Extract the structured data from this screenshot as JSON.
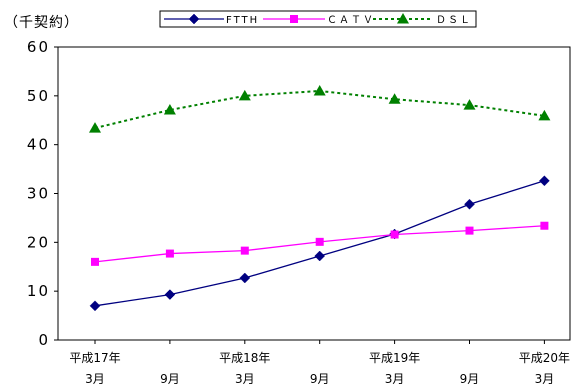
{
  "chart_data": {
    "type": "line",
    "title": "",
    "ylabel": "（千契約）",
    "xlabel": "",
    "ylim": [
      0,
      60
    ],
    "yticks": [
      0,
      10,
      20,
      30,
      40,
      50,
      60
    ],
    "grid": false,
    "legend_placement": "top-center",
    "categories": [
      [
        "平成17年",
        "3月"
      ],
      [
        "",
        "9月"
      ],
      [
        "平成18年",
        "3月"
      ],
      [
        "",
        "9月"
      ],
      [
        "平成19年",
        "3月"
      ],
      [
        "",
        "9月"
      ],
      [
        "平成20年",
        "3月"
      ]
    ],
    "series": [
      {
        "name": "FTTH",
        "color": "#000080",
        "marker": "diamond",
        "line_style": "solid",
        "values": [
          7.0,
          9.3,
          12.7,
          17.2,
          21.7,
          27.8,
          32.6
        ]
      },
      {
        "name": "ＣＡＴＶ",
        "color": "#ff00ff",
        "marker": "square",
        "line_style": "solid",
        "values": [
          16.0,
          17.7,
          18.3,
          20.1,
          21.6,
          22.4,
          23.4
        ]
      },
      {
        "name": "ＤＳＬ",
        "color": "#008000",
        "marker": "triangle",
        "line_style": "dotted",
        "values": [
          43.4,
          47.1,
          50.0,
          51.0,
          49.3,
          48.1,
          45.9
        ]
      }
    ]
  }
}
